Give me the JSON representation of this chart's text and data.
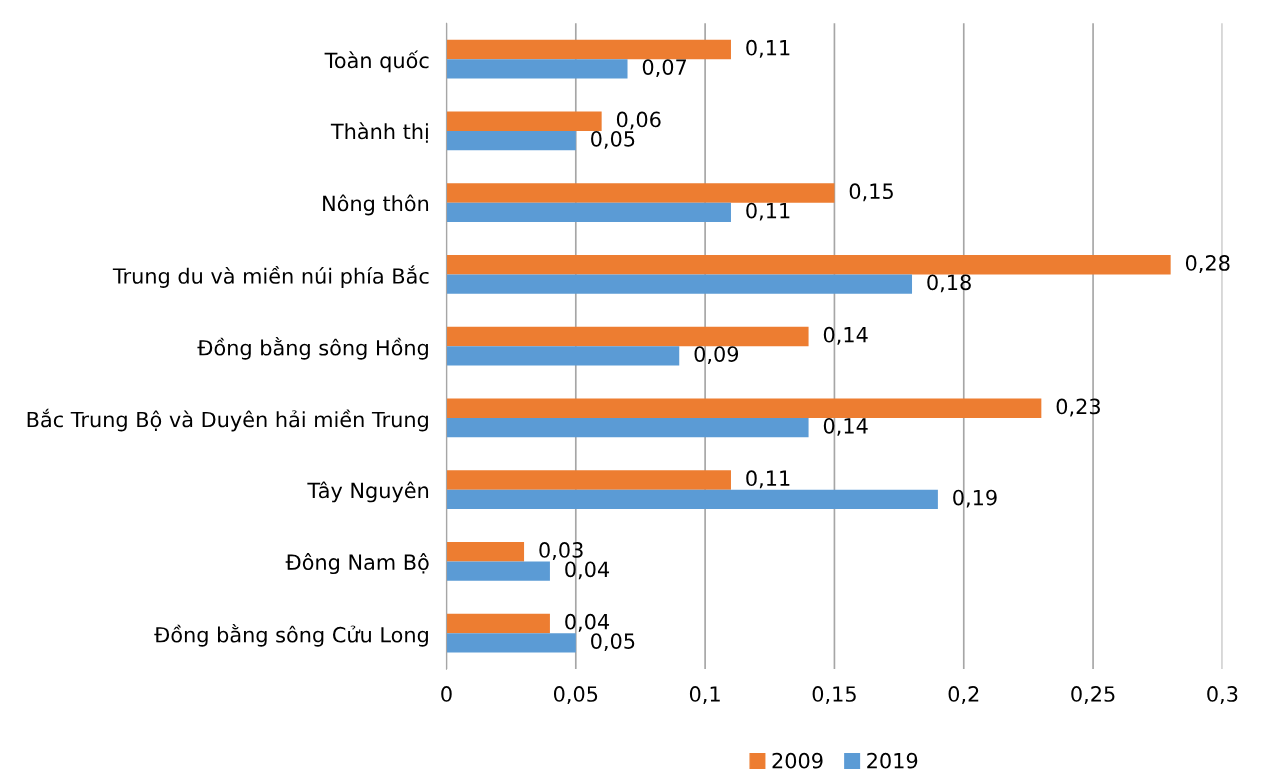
{
  "chart_data": {
    "type": "bar",
    "orientation": "horizontal",
    "categories": [
      "Toàn quốc",
      "Thành thị",
      "Nông thôn",
      "Trung du và miền núi phía Bắc",
      "Đồng bằng sông Hồng",
      "Bắc Trung Bộ và Duyên hải miền Trung",
      "Tây Nguyên",
      "Đông Nam Bộ",
      "Đồng bằng sông Cửu Long"
    ],
    "series": [
      {
        "name": "2009",
        "color": "#ed7d31",
        "values": [
          0.11,
          0.06,
          0.15,
          0.28,
          0.14,
          0.23,
          0.11,
          0.03,
          0.04
        ],
        "value_labels": [
          "0,11",
          "0,06",
          "0,15",
          "0,28",
          "0,14",
          "0,23",
          "0,11",
          "0,03",
          "0,04"
        ]
      },
      {
        "name": "2019",
        "color": "#5b9bd5",
        "values": [
          0.07,
          0.05,
          0.11,
          0.18,
          0.09,
          0.14,
          0.19,
          0.04,
          0.05
        ],
        "value_labels": [
          "0,07",
          "0,05",
          "0,11",
          "0,18",
          "0,09",
          "0,14",
          "0,19",
          "0,04",
          "0,05"
        ]
      }
    ],
    "xlim": [
      0,
      0.3
    ],
    "xticks": [
      0,
      {
        "value": 0.05,
        "label": "0,05"
      },
      {
        "value": 0.1,
        "label": "0,1"
      },
      {
        "value": 0.15,
        "label": "0,15"
      },
      {
        "value": 0.2,
        "label": "0,2"
      },
      {
        "value": 0.25,
        "label": "0,25"
      },
      {
        "value": 0.3,
        "label": "0,3"
      }
    ],
    "grid": "x",
    "legend": "bottom"
  }
}
